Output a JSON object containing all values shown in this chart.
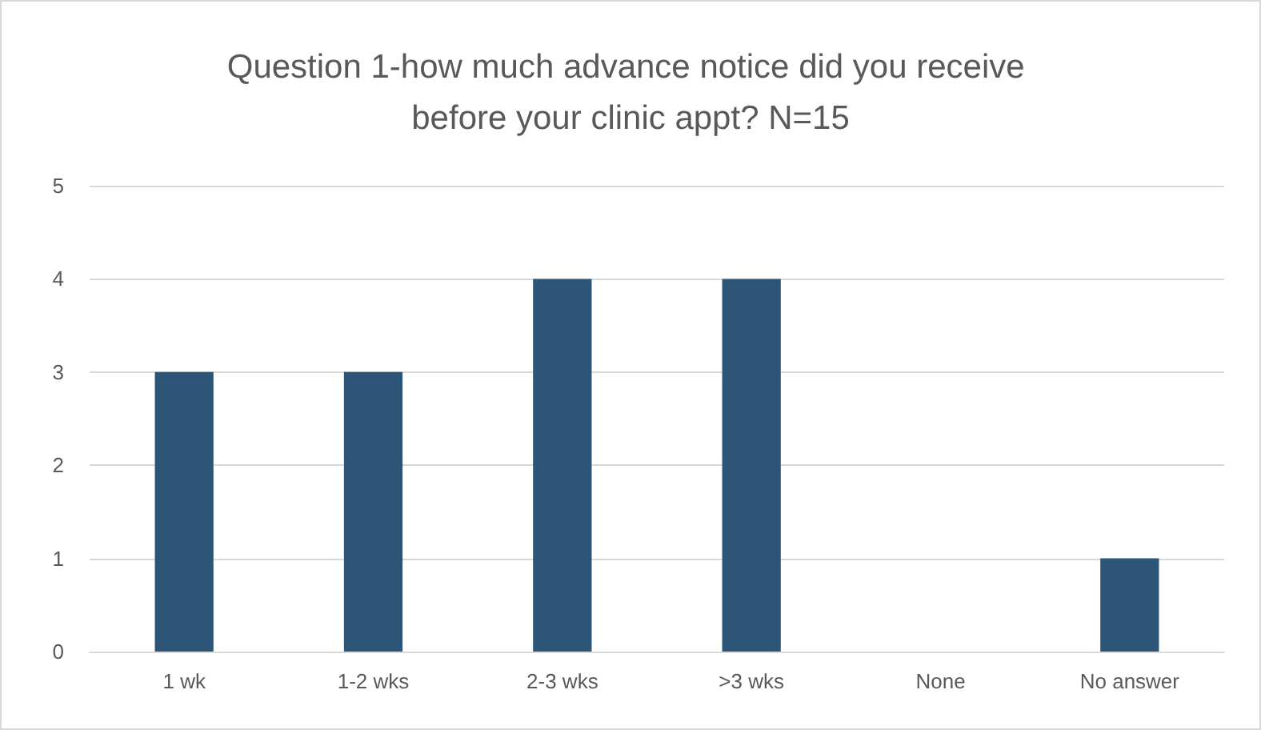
{
  "chart_data": {
    "type": "bar",
    "title": "Question 1-how much advance notice did you receive before your clinic appt? N=15",
    "categories": [
      "1 wk",
      "1-2 wks",
      "2-3 wks",
      ">3 wks",
      "None",
      "No answer"
    ],
    "values": [
      3,
      3,
      4,
      4,
      0,
      1
    ],
    "color": "#2c5577",
    "ylim": [
      0,
      5
    ],
    "yticks": [
      0,
      1,
      2,
      3,
      4,
      5
    ],
    "grid": "y"
  }
}
